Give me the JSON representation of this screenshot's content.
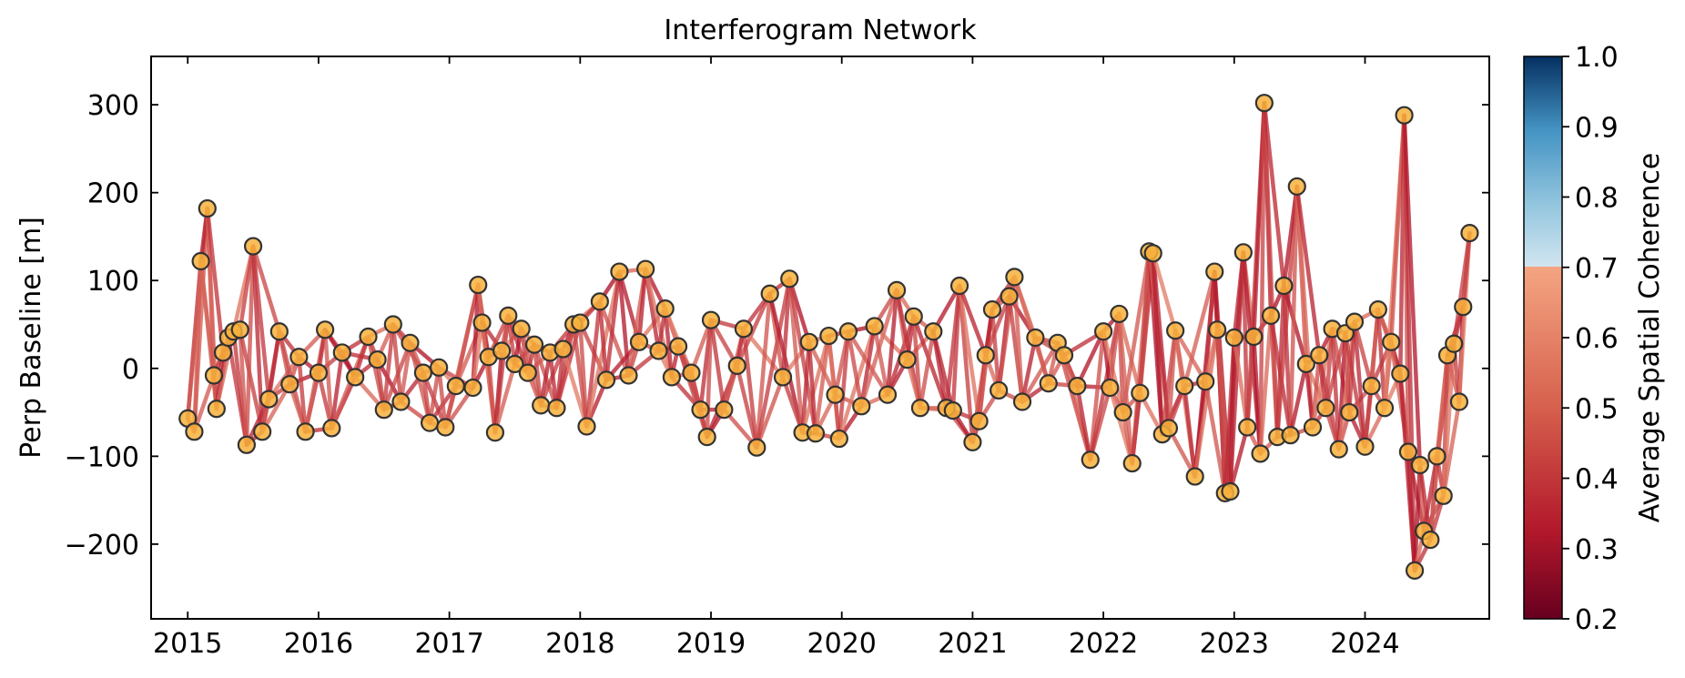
{
  "chart_data": {
    "type": "scatter",
    "title": "Interferogram Network",
    "xlabel": "",
    "ylabel": "Perp Baseline [m]",
    "xlim": [
      2014.72,
      2024.95
    ],
    "ylim": [
      -285,
      355
    ],
    "xticks": [
      2015,
      2016,
      2017,
      2018,
      2019,
      2020,
      2021,
      2022,
      2023,
      2024
    ],
    "xtick_labels": [
      "2015",
      "2016",
      "2017",
      "2018",
      "2019",
      "2020",
      "2021",
      "2022",
      "2023",
      "2024"
    ],
    "yticks": [
      300,
      200,
      100,
      0,
      -100,
      -200
    ],
    "ytick_labels": [
      "300",
      "200",
      "100",
      "0",
      "−100",
      "−200"
    ],
    "colorbar": {
      "label": "Average Spatial Coherence",
      "range": [
        0.2,
        1.0
      ],
      "ticks": [
        1.0,
        0.9,
        0.8,
        0.7,
        0.6,
        0.5,
        0.4,
        0.3,
        0.2
      ],
      "tick_labels": [
        "1.0",
        "0.9",
        "0.8",
        "0.7",
        "0.6",
        "0.5",
        "0.4",
        "0.3",
        "0.2"
      ],
      "colormap": "RdBu"
    },
    "marker_color": "#f7b23b",
    "edge_color_low": "#b0142a",
    "edge_color_high": "#f09a78",
    "acquisitions": [
      {
        "date": 2015.0,
        "bperp": -57
      },
      {
        "date": 2015.05,
        "bperp": -72
      },
      {
        "date": 2015.1,
        "bperp": 122
      },
      {
        "date": 2015.15,
        "bperp": 182
      },
      {
        "date": 2015.2,
        "bperp": -8
      },
      {
        "date": 2015.22,
        "bperp": -46
      },
      {
        "date": 2015.27,
        "bperp": 18
      },
      {
        "date": 2015.31,
        "bperp": 35
      },
      {
        "date": 2015.35,
        "bperp": 42
      },
      {
        "date": 2015.4,
        "bperp": 44
      },
      {
        "date": 2015.45,
        "bperp": -87
      },
      {
        "date": 2015.5,
        "bperp": 139
      },
      {
        "date": 2015.57,
        "bperp": -72
      },
      {
        "date": 2015.62,
        "bperp": -35
      },
      {
        "date": 2015.7,
        "bperp": 42
      },
      {
        "date": 2015.78,
        "bperp": -18
      },
      {
        "date": 2015.85,
        "bperp": 13
      },
      {
        "date": 2015.9,
        "bperp": -72
      },
      {
        "date": 2016.0,
        "bperp": -5
      },
      {
        "date": 2016.05,
        "bperp": 44
      },
      {
        "date": 2016.1,
        "bperp": -68
      },
      {
        "date": 2016.18,
        "bperp": 18
      },
      {
        "date": 2016.28,
        "bperp": -10
      },
      {
        "date": 2016.38,
        "bperp": 36
      },
      {
        "date": 2016.45,
        "bperp": 10
      },
      {
        "date": 2016.5,
        "bperp": -47
      },
      {
        "date": 2016.57,
        "bperp": 50
      },
      {
        "date": 2016.63,
        "bperp": -38
      },
      {
        "date": 2016.7,
        "bperp": 29
      },
      {
        "date": 2016.8,
        "bperp": -5
      },
      {
        "date": 2016.85,
        "bperp": -62
      },
      {
        "date": 2016.92,
        "bperp": 1
      },
      {
        "date": 2016.97,
        "bperp": -67
      },
      {
        "date": 2017.05,
        "bperp": -20
      },
      {
        "date": 2017.18,
        "bperp": -22
      },
      {
        "date": 2017.22,
        "bperp": 95
      },
      {
        "date": 2017.25,
        "bperp": 52
      },
      {
        "date": 2017.3,
        "bperp": 13
      },
      {
        "date": 2017.35,
        "bperp": -73
      },
      {
        "date": 2017.4,
        "bperp": 20
      },
      {
        "date": 2017.45,
        "bperp": 60
      },
      {
        "date": 2017.5,
        "bperp": 5
      },
      {
        "date": 2017.55,
        "bperp": 45
      },
      {
        "date": 2017.6,
        "bperp": -5
      },
      {
        "date": 2017.65,
        "bperp": 27
      },
      {
        "date": 2017.7,
        "bperp": -42
      },
      {
        "date": 2017.77,
        "bperp": 18
      },
      {
        "date": 2017.82,
        "bperp": -45
      },
      {
        "date": 2017.87,
        "bperp": 22
      },
      {
        "date": 2017.95,
        "bperp": 50
      },
      {
        "date": 2018.0,
        "bperp": 52
      },
      {
        "date": 2018.05,
        "bperp": -66
      },
      {
        "date": 2018.15,
        "bperp": 76
      },
      {
        "date": 2018.2,
        "bperp": -13
      },
      {
        "date": 2018.3,
        "bperp": 110
      },
      {
        "date": 2018.37,
        "bperp": -8
      },
      {
        "date": 2018.45,
        "bperp": 30
      },
      {
        "date": 2018.5,
        "bperp": 113
      },
      {
        "date": 2018.6,
        "bperp": 20
      },
      {
        "date": 2018.65,
        "bperp": 68
      },
      {
        "date": 2018.7,
        "bperp": -10
      },
      {
        "date": 2018.75,
        "bperp": 25
      },
      {
        "date": 2018.85,
        "bperp": -5
      },
      {
        "date": 2018.92,
        "bperp": -47
      },
      {
        "date": 2018.97,
        "bperp": -78
      },
      {
        "date": 2019.0,
        "bperp": 55
      },
      {
        "date": 2019.1,
        "bperp": -47
      },
      {
        "date": 2019.2,
        "bperp": 3
      },
      {
        "date": 2019.25,
        "bperp": 45
      },
      {
        "date": 2019.35,
        "bperp": -90
      },
      {
        "date": 2019.45,
        "bperp": 85
      },
      {
        "date": 2019.55,
        "bperp": -10
      },
      {
        "date": 2019.6,
        "bperp": 102
      },
      {
        "date": 2019.7,
        "bperp": -73
      },
      {
        "date": 2019.75,
        "bperp": 30
      },
      {
        "date": 2019.8,
        "bperp": -74
      },
      {
        "date": 2019.9,
        "bperp": 37
      },
      {
        "date": 2019.95,
        "bperp": -30
      },
      {
        "date": 2019.98,
        "bperp": -80
      },
      {
        "date": 2020.05,
        "bperp": 42
      },
      {
        "date": 2020.15,
        "bperp": -43
      },
      {
        "date": 2020.25,
        "bperp": 48
      },
      {
        "date": 2020.35,
        "bperp": -30
      },
      {
        "date": 2020.42,
        "bperp": 89
      },
      {
        "date": 2020.5,
        "bperp": 10
      },
      {
        "date": 2020.55,
        "bperp": 59
      },
      {
        "date": 2020.6,
        "bperp": -45
      },
      {
        "date": 2020.7,
        "bperp": 42
      },
      {
        "date": 2020.8,
        "bperp": -45
      },
      {
        "date": 2020.85,
        "bperp": -48
      },
      {
        "date": 2020.9,
        "bperp": 94
      },
      {
        "date": 2021.0,
        "bperp": -84
      },
      {
        "date": 2021.05,
        "bperp": -60
      },
      {
        "date": 2021.1,
        "bperp": 15
      },
      {
        "date": 2021.15,
        "bperp": 67
      },
      {
        "date": 2021.2,
        "bperp": -25
      },
      {
        "date": 2021.28,
        "bperp": 82
      },
      {
        "date": 2021.32,
        "bperp": 104
      },
      {
        "date": 2021.38,
        "bperp": -38
      },
      {
        "date": 2021.48,
        "bperp": 35
      },
      {
        "date": 2021.58,
        "bperp": -17
      },
      {
        "date": 2021.65,
        "bperp": 29
      },
      {
        "date": 2021.7,
        "bperp": 15
      },
      {
        "date": 2021.8,
        "bperp": -20
      },
      {
        "date": 2021.9,
        "bperp": -104
      },
      {
        "date": 2022.0,
        "bperp": 42
      },
      {
        "date": 2022.05,
        "bperp": -22
      },
      {
        "date": 2022.12,
        "bperp": 62
      },
      {
        "date": 2022.15,
        "bperp": -50
      },
      {
        "date": 2022.22,
        "bperp": -108
      },
      {
        "date": 2022.28,
        "bperp": -28
      },
      {
        "date": 2022.35,
        "bperp": 133
      },
      {
        "date": 2022.38,
        "bperp": 131
      },
      {
        "date": 2022.45,
        "bperp": -75
      },
      {
        "date": 2022.5,
        "bperp": -68
      },
      {
        "date": 2022.55,
        "bperp": 43
      },
      {
        "date": 2022.62,
        "bperp": -20
      },
      {
        "date": 2022.7,
        "bperp": -123
      },
      {
        "date": 2022.78,
        "bperp": -15
      },
      {
        "date": 2022.85,
        "bperp": 110
      },
      {
        "date": 2022.87,
        "bperp": 44
      },
      {
        "date": 2022.93,
        "bperp": -142
      },
      {
        "date": 2022.97,
        "bperp": -140
      },
      {
        "date": 2023.0,
        "bperp": 35
      },
      {
        "date": 2023.07,
        "bperp": 132
      },
      {
        "date": 2023.1,
        "bperp": -67
      },
      {
        "date": 2023.15,
        "bperp": 36
      },
      {
        "date": 2023.2,
        "bperp": -97
      },
      {
        "date": 2023.23,
        "bperp": 302
      },
      {
        "date": 2023.28,
        "bperp": 60
      },
      {
        "date": 2023.33,
        "bperp": -78
      },
      {
        "date": 2023.38,
        "bperp": 94
      },
      {
        "date": 2023.43,
        "bperp": -76
      },
      {
        "date": 2023.48,
        "bperp": 207
      },
      {
        "date": 2023.55,
        "bperp": 5
      },
      {
        "date": 2023.6,
        "bperp": -67
      },
      {
        "date": 2023.65,
        "bperp": 15
      },
      {
        "date": 2023.7,
        "bperp": -45
      },
      {
        "date": 2023.75,
        "bperp": 45
      },
      {
        "date": 2023.8,
        "bperp": -92
      },
      {
        "date": 2023.85,
        "bperp": 40
      },
      {
        "date": 2023.88,
        "bperp": -50
      },
      {
        "date": 2023.92,
        "bperp": 53
      },
      {
        "date": 2024.0,
        "bperp": -89
      },
      {
        "date": 2024.05,
        "bperp": -20
      },
      {
        "date": 2024.1,
        "bperp": 67
      },
      {
        "date": 2024.15,
        "bperp": -45
      },
      {
        "date": 2024.2,
        "bperp": 30
      },
      {
        "date": 2024.27,
        "bperp": -6
      },
      {
        "date": 2024.3,
        "bperp": 288
      },
      {
        "date": 2024.33,
        "bperp": -95
      },
      {
        "date": 2024.38,
        "bperp": -230
      },
      {
        "date": 2024.42,
        "bperp": -110
      },
      {
        "date": 2024.45,
        "bperp": -185
      },
      {
        "date": 2024.5,
        "bperp": -195
      },
      {
        "date": 2024.55,
        "bperp": -100
      },
      {
        "date": 2024.6,
        "bperp": -145
      },
      {
        "date": 2024.63,
        "bperp": 15
      },
      {
        "date": 2024.68,
        "bperp": 28
      },
      {
        "date": 2024.72,
        "bperp": -38
      },
      {
        "date": 2024.75,
        "bperp": 70
      },
      {
        "date": 2024.8,
        "bperp": 154
      }
    ]
  }
}
